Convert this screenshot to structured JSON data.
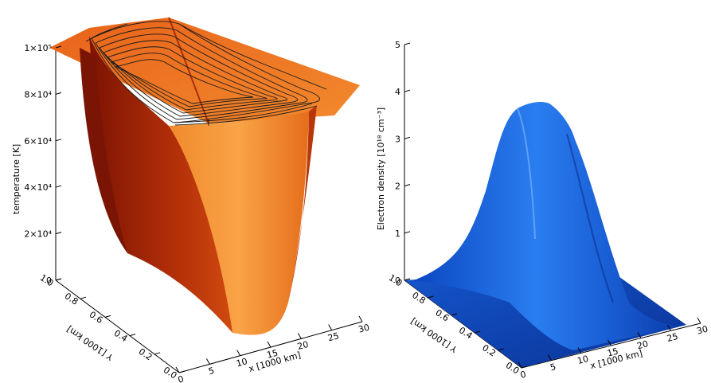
{
  "chart_data": [
    {
      "type": "surface",
      "zlabel": "temperature [K]",
      "xlabel": "x [1000 km]",
      "ylabel": "Y [1000 km]",
      "z_ticks": [
        "0",
        "2×10⁴",
        "4×10⁴",
        "6×10⁴",
        "8×10⁴",
        "1×10⁵"
      ],
      "z_tick_values": [
        0,
        20000,
        40000,
        60000,
        80000,
        100000
      ],
      "x_ticks": [
        "0",
        "5",
        "10",
        "15",
        "20",
        "25",
        "30"
      ],
      "x_tick_values": [
        0,
        5,
        10,
        15,
        20,
        25,
        30
      ],
      "y_ticks": [
        "0.0",
        "0.2",
        "0.4",
        "0.6",
        "0.8",
        "1.0"
      ],
      "y_tick_values": [
        0.0,
        0.2,
        0.4,
        0.6,
        0.8,
        1.0
      ],
      "xlim": [
        0,
        30
      ],
      "ylim": [
        0,
        1
      ],
      "zlim": [
        0,
        100000
      ],
      "surface": "deep bowl: ~100000 K plateau at the edges dropping to about 15000 K in the central trough",
      "contour_lines": true,
      "colors": {
        "dark": "#8c1a04",
        "mid": "#d2480e",
        "light": "#f69433"
      }
    },
    {
      "type": "surface",
      "zlabel": "Electron density [10¹⁸ cm⁻³]",
      "xlabel": "x [1000 km]",
      "ylabel": "Y [1000 km]",
      "z_ticks": [
        "0",
        "1",
        "2",
        "3",
        "4",
        "5"
      ],
      "z_tick_values": [
        0,
        1,
        2,
        3,
        4,
        5
      ],
      "x_ticks": [
        "0",
        "5",
        "10",
        "15",
        "20",
        "25",
        "30"
      ],
      "x_tick_values": [
        0,
        5,
        10,
        15,
        20,
        25,
        30
      ],
      "y_ticks": [
        "0.0",
        "0.2",
        "0.4",
        "0.6",
        "0.8",
        "1.0"
      ],
      "y_tick_values": [
        0.0,
        0.2,
        0.4,
        0.6,
        0.8,
        1.0
      ],
      "xlim": [
        0,
        30
      ],
      "ylim": [
        0,
        1
      ],
      "zlim": [
        0,
        5
      ],
      "surface": "single hump peaking near 3.8 around the middle of the domain, near 0 at the edges",
      "peak_value": 3.8,
      "colors": {
        "dark": "#0a3fb0",
        "mid": "#1d6fe0",
        "light": "#5aa8ff"
      }
    }
  ]
}
